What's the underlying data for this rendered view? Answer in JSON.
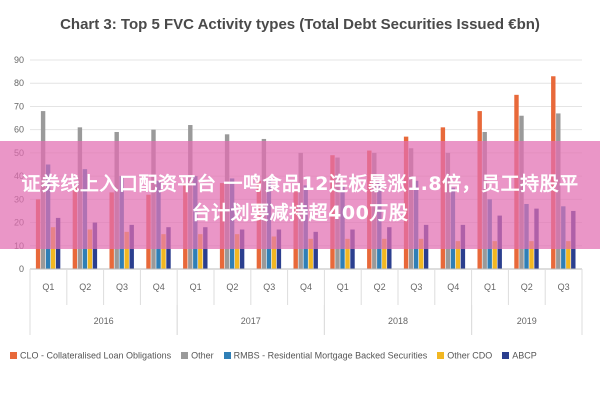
{
  "chart_data": {
    "type": "bar",
    "title": "Chart 3: Top 5 FVC Activity types (Total Debt Securities Issued €bn)",
    "ylim": [
      0,
      90
    ],
    "yticks": [
      0,
      10,
      20,
      30,
      40,
      50,
      60,
      70,
      80,
      90
    ],
    "grid": true,
    "legend_position": "bottom",
    "categories": [
      "Q1",
      "Q2",
      "Q3",
      "Q4",
      "Q1",
      "Q2",
      "Q3",
      "Q4",
      "Q1",
      "Q2",
      "Q3",
      "Q4",
      "Q1",
      "Q2",
      "Q3"
    ],
    "years": [
      {
        "label": "2016",
        "start": 0,
        "count": 4
      },
      {
        "label": "2017",
        "start": 4,
        "count": 4
      },
      {
        "label": "2018",
        "start": 8,
        "count": 4
      },
      {
        "label": "2019",
        "start": 12,
        "count": 3
      }
    ],
    "series": [
      {
        "name": "CLO - Collateralised Loan Obligations",
        "color": "#e8693a",
        "values": [
          30,
          36,
          33,
          32,
          37,
          37,
          38,
          34,
          49,
          51,
          57,
          61,
          68,
          75,
          83
        ]
      },
      {
        "name": "Other",
        "color": "#9a9a9a",
        "values": [
          68,
          61,
          59,
          60,
          62,
          58,
          56,
          50,
          48,
          50,
          52,
          50,
          59,
          66,
          67
        ]
      },
      {
        "name": "RMBS - Residential Mortgage Backed Securities",
        "color": "#2f7fb6",
        "values": [
          45,
          43,
          40,
          38,
          40,
          39,
          38,
          36,
          36,
          37,
          38,
          35,
          30,
          28,
          27
        ]
      },
      {
        "name": "Other CDO",
        "color": "#f2b722",
        "values": [
          18,
          17,
          16,
          15,
          15,
          15,
          14,
          13,
          13,
          13,
          13,
          12,
          12,
          12,
          12
        ]
      },
      {
        "name": "ABCP",
        "color": "#2b3f8f",
        "values": [
          22,
          20,
          19,
          18,
          18,
          17,
          17,
          16,
          17,
          18,
          19,
          19,
          23,
          26,
          25
        ]
      }
    ]
  },
  "overlay": {
    "text": "证券线上入口配资平台 一鸣食品12连板暴涨1.8倍，员工持股平台计划要减持超400万股"
  }
}
